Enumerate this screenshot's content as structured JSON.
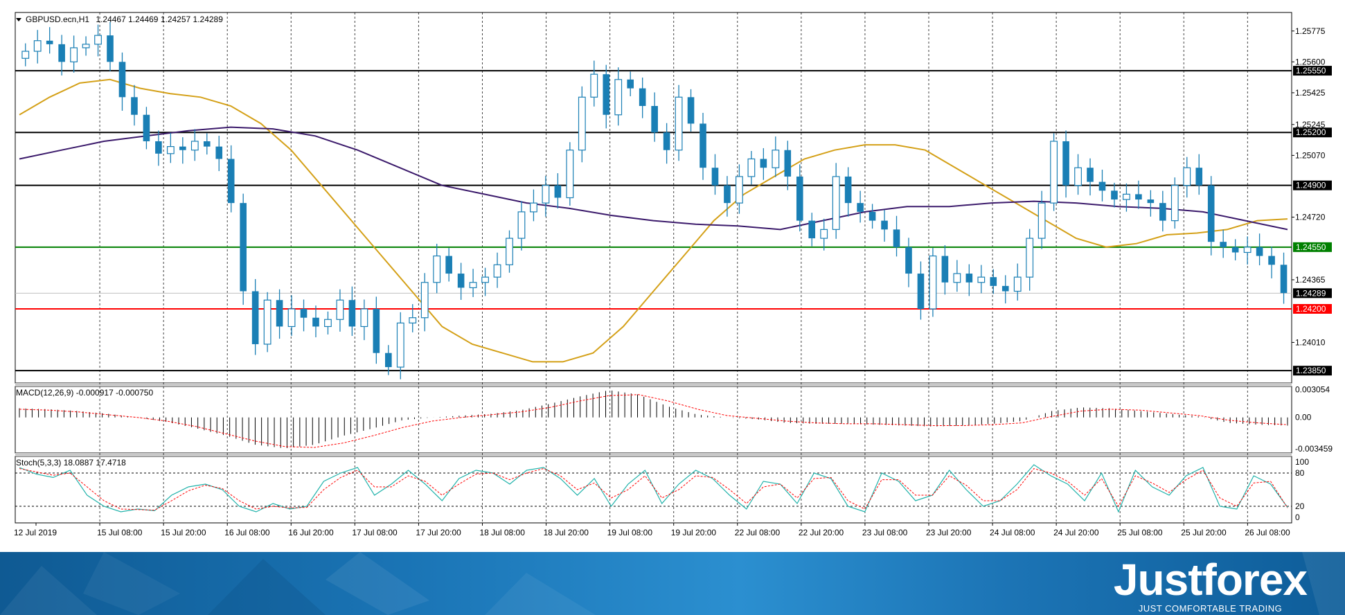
{
  "header": {
    "symbol_label": "GBPUSD.ecn,H1",
    "ohlc": "1.24467 1.24469 1.24257 1.24289"
  },
  "macd_panel": {
    "label": "MACD(12,26,9) -0.000917 -0.000750"
  },
  "stoch_panel": {
    "label": "Stoch(5,3,3) 18.0887 17.4718"
  },
  "brand": {
    "name": "Justforex",
    "slogan": "JUST COMFORTABLE TRADING"
  },
  "colors": {
    "bull_candle": "#1a7fb5",
    "bear_candle": "#1a7fb5",
    "ma_fast": "#d4a017",
    "ma_slow": "#3b1a6b",
    "support_green": "#008000",
    "support_red": "#ff0000",
    "level_black": "#000000",
    "stoch_main": "#20b2aa",
    "stoch_signal": "#ff0000",
    "macd_signal": "#ff0000"
  },
  "chart_data": {
    "type": "candlestick",
    "price_axis": {
      "ylim": [
        1.2378,
        1.2588
      ],
      "ticks": [
        "1.25775",
        "1.25600",
        "1.25425",
        "1.25245",
        "1.25070",
        "1.24720",
        "1.24365",
        "1.24010"
      ]
    },
    "horizontal_levels": [
      {
        "value": 1.2555,
        "label": "1.25550",
        "color": "#000000"
      },
      {
        "value": 1.252,
        "label": "1.25200",
        "color": "#000000"
      },
      {
        "value": 1.249,
        "label": "1.24900",
        "color": "#000000"
      },
      {
        "value": 1.2455,
        "label": "1.24550",
        "color": "#008000"
      },
      {
        "value": 1.242,
        "label": "1.24200",
        "color": "#ff0000"
      },
      {
        "value": 1.2385,
        "label": "1.23850",
        "color": "#000000"
      }
    ],
    "current_price": {
      "value": 1.24289,
      "label": "1.24289"
    },
    "time_labels": [
      "12 Jul 2019",
      "15 Jul 08:00",
      "15 Jul 20:00",
      "16 Jul 08:00",
      "16 Jul 20:00",
      "17 Jul 08:00",
      "17 Jul 20:00",
      "18 Jul 08:00",
      "18 Jul 20:00",
      "19 Jul 08:00",
      "19 Jul 20:00",
      "22 Jul 08:00",
      "22 Jul 20:00",
      "23 Jul 08:00",
      "23 Jul 20:00",
      "24 Jul 08:00",
      "24 Jul 20:00",
      "25 Jul 08:00",
      "25 Jul 20:00",
      "26 Jul 08:00"
    ],
    "bars_per_label": 12,
    "close": [
      1.2566,
      1.2572,
      1.257,
      1.256,
      1.2568,
      1.257,
      1.2575,
      1.256,
      1.254,
      1.253,
      1.2515,
      1.2508,
      1.2512,
      1.251,
      1.2515,
      1.2512,
      1.2505,
      1.248,
      1.243,
      1.24,
      1.2425,
      1.241,
      1.242,
      1.2415,
      1.241,
      1.2414,
      1.2425,
      1.241,
      1.242,
      1.2395,
      1.2387,
      1.2412,
      1.2415,
      1.2435,
      1.245,
      1.244,
      1.2432,
      1.2435,
      1.2438,
      1.2445,
      1.246,
      1.2475,
      1.248,
      1.249,
      1.2483,
      1.251,
      1.254,
      1.2553,
      1.253,
      1.255,
      1.2545,
      1.2535,
      1.252,
      1.251,
      1.254,
      1.2525,
      1.25,
      1.249,
      1.248,
      1.2495,
      1.2505,
      1.25,
      1.251,
      1.2495,
      1.247,
      1.246,
      1.2465,
      1.2495,
      1.248,
      1.2475,
      1.247,
      1.2465,
      1.2455,
      1.244,
      1.242,
      1.245,
      1.2435,
      1.244,
      1.2435,
      1.2438,
      1.2433,
      1.243,
      1.2438,
      1.246,
      1.248,
      1.2515,
      1.249,
      1.25,
      1.2492,
      1.2487,
      1.2482,
      1.2485,
      1.2482,
      1.248,
      1.247,
      1.249,
      1.25,
      1.249,
      1.2458,
      1.2455,
      1.2452,
      1.2455,
      1.245,
      1.2445,
      1.2429
    ],
    "ma_fast": [
      1.253,
      1.254,
      1.2548,
      1.255,
      1.2545,
      1.2542,
      1.254,
      1.2535,
      1.2525,
      1.251,
      1.249,
      1.247,
      1.245,
      1.243,
      1.241,
      1.24,
      1.2395,
      1.239,
      1.239,
      1.2395,
      1.241,
      1.243,
      1.245,
      1.247,
      1.2485,
      1.2495,
      1.2505,
      1.251,
      1.2513,
      1.2513,
      1.251,
      1.25,
      1.249,
      1.248,
      1.247,
      1.246,
      1.2455,
      1.2457,
      1.2462,
      1.2463,
      1.2465,
      1.247,
      1.2471
    ],
    "ma_slow": [
      1.2505,
      1.251,
      1.2515,
      1.2518,
      1.2521,
      1.2523,
      1.2522,
      1.2518,
      1.251,
      1.25,
      1.249,
      1.2485,
      1.248,
      1.2477,
      1.2473,
      1.247,
      1.2468,
      1.2467,
      1.2465,
      1.247,
      1.2475,
      1.2478,
      1.2478,
      1.248,
      1.2481,
      1.248,
      1.2478,
      1.2477,
      1.2475,
      1.247,
      1.2465
    ],
    "macd": {
      "ticks": [
        "0.003054",
        "0.00",
        "-0.003459"
      ],
      "ylim": [
        -0.0039,
        0.0034
      ],
      "histogram": [
        0.001,
        0.0009,
        0.0007,
        0.0004,
        0.0,
        -0.0005,
        -0.0012,
        -0.002,
        -0.003,
        -0.0034,
        -0.003,
        -0.002,
        -0.0012,
        -0.0003,
        0.0,
        0.0002,
        0.0004,
        0.0008,
        0.0015,
        0.0023,
        0.003,
        0.0025,
        0.0012,
        0.0003,
        0.0,
        -0.0002,
        -0.0006,
        -0.0007,
        -0.0007,
        -0.0008,
        -0.0009,
        -0.001,
        -0.0009,
        -0.0007,
        -0.0004,
        0.0007,
        0.0011,
        0.001,
        0.0007,
        0.0004,
        0.0001,
        -0.0006,
        -0.0008,
        -0.0009
      ],
      "signal": [
        0.0009,
        0.0008,
        0.0006,
        0.0003,
        0.0,
        -0.0004,
        -0.001,
        -0.0018,
        -0.0026,
        -0.0032,
        -0.0033,
        -0.0028,
        -0.002,
        -0.0011,
        -0.0004,
        0.0,
        0.0003,
        0.0006,
        0.0011,
        0.0018,
        0.0024,
        0.0025,
        0.0018,
        0.0009,
        0.0002,
        -0.0001,
        -0.0004,
        -0.0006,
        -0.0007,
        -0.0007,
        -0.0008,
        -0.0009,
        -0.0009,
        -0.0008,
        -0.0006,
        0.0001,
        0.0007,
        0.0009,
        0.0008,
        0.0005,
        0.0002,
        -0.0003,
        -0.0006,
        -0.0008
      ]
    },
    "stochastic": {
      "ticks": [
        "100",
        "80",
        "20",
        "0"
      ],
      "ylim": [
        0,
        100
      ],
      "main": [
        90,
        78,
        72,
        85,
        40,
        20,
        10,
        15,
        12,
        40,
        55,
        60,
        50,
        20,
        10,
        25,
        15,
        20,
        65,
        80,
        90,
        40,
        60,
        85,
        60,
        30,
        70,
        85,
        80,
        60,
        85,
        90,
        70,
        40,
        70,
        20,
        60,
        85,
        25,
        60,
        85,
        70,
        40,
        15,
        65,
        60,
        25,
        80,
        70,
        20,
        10,
        80,
        65,
        30,
        40,
        85,
        50,
        20,
        30,
        60,
        95,
        75,
        60,
        30,
        80,
        10,
        85,
        55,
        40,
        75,
        90,
        20,
        15,
        75,
        60,
        18
      ],
      "signal": [
        88,
        82,
        76,
        80,
        55,
        30,
        15,
        14,
        13,
        30,
        48,
        58,
        52,
        30,
        15,
        20,
        17,
        18,
        50,
        72,
        85,
        55,
        55,
        75,
        65,
        40,
        60,
        78,
        80,
        68,
        80,
        88,
        75,
        50,
        62,
        35,
        50,
        75,
        35,
        50,
        75,
        72,
        50,
        25,
        55,
        60,
        35,
        70,
        72,
        30,
        15,
        68,
        68,
        40,
        40,
        75,
        58,
        30,
        30,
        50,
        88,
        80,
        65,
        40,
        70,
        20,
        75,
        62,
        45,
        68,
        85,
        35,
        20,
        62,
        65,
        17
      ]
    }
  }
}
